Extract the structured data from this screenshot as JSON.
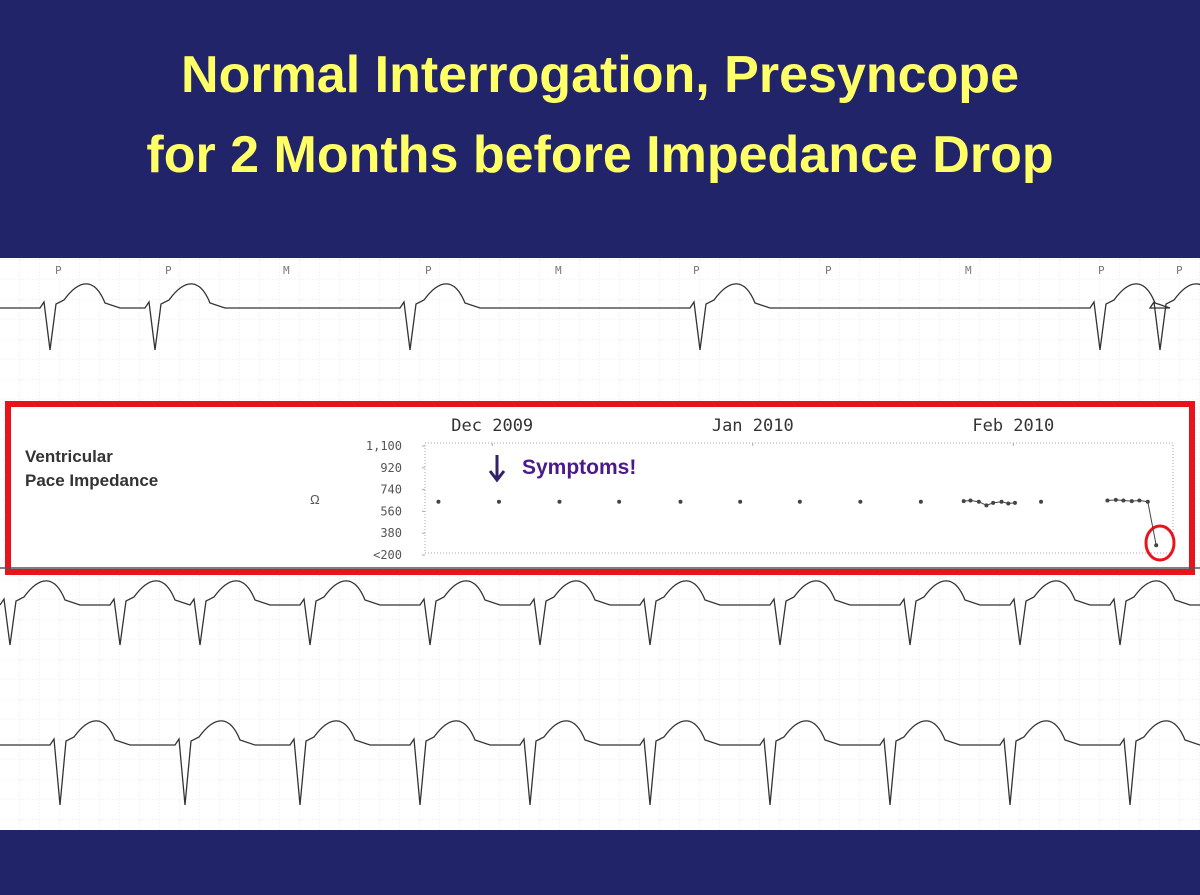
{
  "header": {
    "title_lines": [
      "Normal Interrogation, Presyncope",
      "for 2 Months before Impedance Drop"
    ]
  },
  "ecg_strip": {
    "marker_labels": [
      "P",
      "P",
      "M",
      "P",
      "M",
      "P",
      "P",
      "M",
      "P",
      "P"
    ]
  },
  "chart_data": {
    "type": "line",
    "label_lines": [
      "Ventricular",
      "Pace Impedance"
    ],
    "y_unit": "Ω",
    "annotation": "Symptoms!",
    "color": "#444444",
    "x": [
      23.6,
      30.8,
      38.0,
      45.1,
      52.4,
      59.5,
      66.6,
      73.8,
      81.0,
      86.1,
      86.9,
      87.9,
      88.8,
      89.6,
      90.6,
      91.4,
      92.2,
      95.3,
      103.2,
      104.2,
      105.1,
      106.1,
      107.0,
      108.0,
      109.0
    ],
    "values": [
      640,
      640,
      640,
      640,
      640,
      640,
      640,
      640,
      640,
      645,
      650,
      640,
      610,
      630,
      640,
      625,
      630,
      640,
      650,
      655,
      650,
      645,
      650,
      640,
      280
    ],
    "xlim": [
      22,
      111
    ],
    "xticks": [
      {
        "value": 30,
        "label": "Dec 2009"
      },
      {
        "value": 61,
        "label": "Jan 2010"
      },
      {
        "value": 92,
        "label": "Feb 2010"
      }
    ],
    "ylim": [
      200,
      1100
    ],
    "yticks": [
      {
        "value": 1100,
        "label": "1,100"
      },
      920,
      740,
      560,
      380,
      {
        "value": 200,
        "label": "<200"
      }
    ],
    "grid": false
  }
}
